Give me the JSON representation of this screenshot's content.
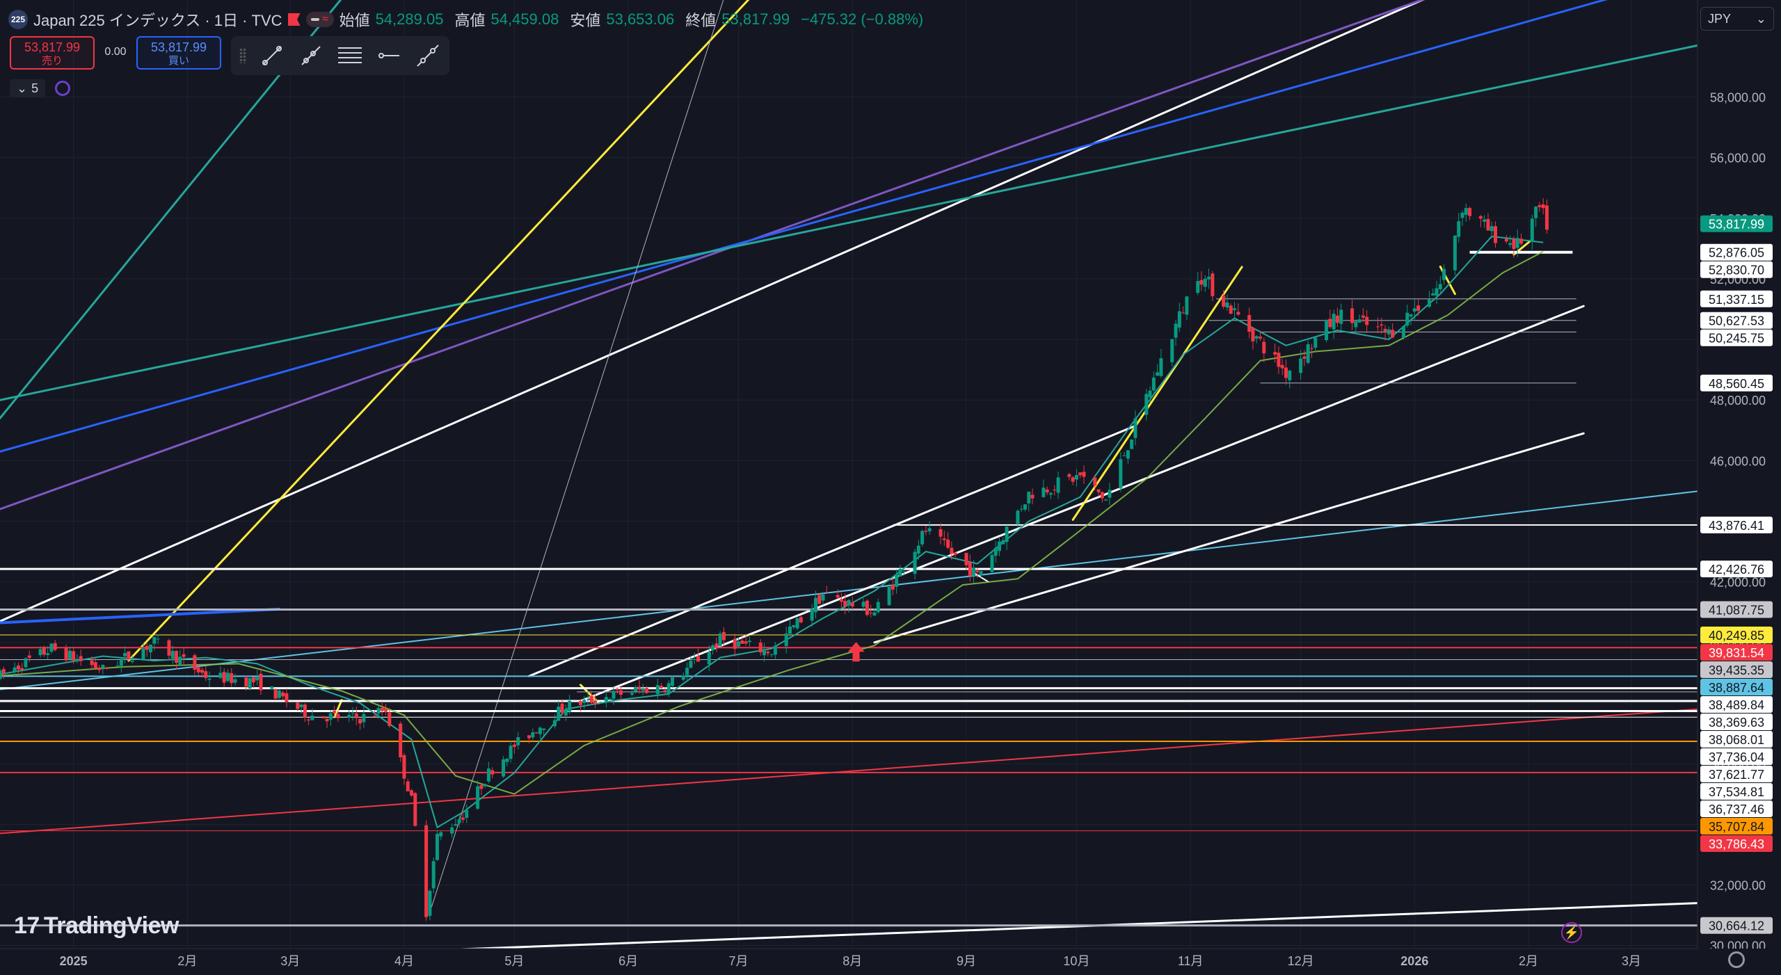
{
  "header": {
    "symbol_badge": "225",
    "title": "Japan 225 インデックス · 1日 · TVC",
    "open_label": "始値",
    "open_value": "54,289.05",
    "high_label": "高値",
    "high_value": "54,459.08",
    "low_label": "安値",
    "low_value": "53,653.06",
    "close_label": "終値",
    "close_value": "53,817.99",
    "change": "−475.32 (−0.88%)"
  },
  "trade": {
    "sell_price": "53,817.99",
    "sell_label": "売り",
    "spread": "0.00",
    "buy_price": "53,817.99",
    "buy_label": "買い"
  },
  "legend": {
    "indicator_count": "5"
  },
  "currency": {
    "value": "JPY"
  },
  "brand": {
    "logo_text": "TradingView"
  },
  "colors": {
    "up": "#089981",
    "down": "#f23645",
    "background": "#141722",
    "text": "#d1d4dc"
  },
  "chart_data": {
    "type": "candlestick",
    "title": "Japan 225 インデックス · 1日 · TVC",
    "x_axis": {
      "ticks": [
        {
          "label": "2025",
          "date": "2025-01-01"
        },
        {
          "label": "2月",
          "date": "2025-02-01"
        },
        {
          "label": "3月",
          "date": "2025-03-01"
        },
        {
          "label": "4月",
          "date": "2025-04-01"
        },
        {
          "label": "5月",
          "date": "2025-05-01"
        },
        {
          "label": "6月",
          "date": "2025-06-01"
        },
        {
          "label": "7月",
          "date": "2025-07-01"
        },
        {
          "label": "8月",
          "date": "2025-08-01"
        },
        {
          "label": "9月",
          "date": "2025-09-01"
        },
        {
          "label": "10月",
          "date": "2025-10-01"
        },
        {
          "label": "11月",
          "date": "2025-11-01"
        },
        {
          "label": "12月",
          "date": "2025-12-01"
        },
        {
          "label": "2026",
          "date": "2026-01-01"
        },
        {
          "label": "2月",
          "date": "2026-02-01"
        },
        {
          "label": "3月",
          "date": "2026-03-01"
        }
      ],
      "range": [
        "2024-12-12",
        "2026-03-19"
      ]
    },
    "y_axis": {
      "ticks": [
        "30,000.00",
        "32,000.00",
        "34,000.00",
        "36,000.00",
        "38,000.00",
        "40,000.00",
        "42,000.00",
        "44,000.00",
        "46,000.00",
        "48,000.00",
        "50,000.00",
        "52,000.00",
        "54,000.00",
        "56,000.00",
        "58,000.00"
      ],
      "tick_values": [
        30000,
        32000,
        34000,
        36000,
        38000,
        40000,
        42000,
        44000,
        46000,
        48000,
        50000,
        52000,
        54000,
        56000,
        58000
      ],
      "range": [
        29900,
        61200
      ]
    },
    "last_price": {
      "label": "53,817.99",
      "value": 53817.99
    },
    "price_labels": [
      {
        "label": "52,876.05",
        "value": 52876.05,
        "bg": "#ffffff",
        "fg": "#131722"
      },
      {
        "label": "52,830.70",
        "value": 52830.7,
        "bg": "#ffffff",
        "fg": "#131722"
      },
      {
        "label": "51,337.15",
        "value": 51337.15,
        "bg": "#ffffff",
        "fg": "#131722"
      },
      {
        "label": "50,627.53",
        "value": 50627.53,
        "bg": "#ffffff",
        "fg": "#131722"
      },
      {
        "label": "50,245.75",
        "value": 50245.75,
        "bg": "#ffffff",
        "fg": "#131722"
      },
      {
        "label": "48,560.45",
        "value": 48560.45,
        "bg": "#ffffff",
        "fg": "#131722"
      },
      {
        "label": "43,876.41",
        "value": 43876.41,
        "bg": "#ffffff",
        "fg": "#131722"
      },
      {
        "label": "42,426.76",
        "value": 42426.76,
        "bg": "#ffffff",
        "fg": "#131722"
      },
      {
        "label": "41,087.75",
        "value": 41087.75,
        "bg": "#c8c8cc",
        "fg": "#131722"
      },
      {
        "label": "40,249.85",
        "value": 40249.85,
        "bg": "#ffeb3b",
        "fg": "#131722"
      },
      {
        "label": "39,831.54",
        "value": 39831.54,
        "bg": "#f23645",
        "fg": "#ffffff"
      },
      {
        "label": "39,435.35",
        "value": 39435.35,
        "bg": "#c8c8cc",
        "fg": "#131722"
      },
      {
        "label": "38,887.64",
        "value": 38887.64,
        "bg": "#5fc3e4",
        "fg": "#131722"
      },
      {
        "label": "38,489.84",
        "value": 38489.84,
        "bg": "#ffffff",
        "fg": "#131722"
      },
      {
        "label": "38,369.63",
        "value": 38369.63,
        "bg": "#ffffff",
        "fg": "#131722"
      },
      {
        "label": "38,068.01",
        "value": 38068.01,
        "bg": "#ffffff",
        "fg": "#131722"
      },
      {
        "label": "37,736.04",
        "value": 37736.04,
        "bg": "#ffffff",
        "fg": "#131722"
      },
      {
        "label": "37,621.77",
        "value": 37621.77,
        "bg": "#ffffff",
        "fg": "#131722"
      },
      {
        "label": "37,534.81",
        "value": 37534.81,
        "bg": "#ffffff",
        "fg": "#131722"
      },
      {
        "label": "36,737.46",
        "value": 36737.46,
        "bg": "#ffffff",
        "fg": "#131722"
      },
      {
        "label": "35,707.84",
        "value": 35707.84,
        "bg": "#ff9800",
        "fg": "#131722"
      },
      {
        "label": "33,786.43",
        "value": 33786.43,
        "bg": "#f23645",
        "fg": "#ffffff"
      },
      {
        "label": "30,664.12",
        "value": 30664.12,
        "bg": "#c8c8cc",
        "fg": "#131722"
      }
    ],
    "horizontal_lines": [
      {
        "value": 52876.05,
        "color": "#ffffff",
        "from": "2026-01-16",
        "to": "2026-02-13",
        "width": 4
      },
      {
        "value": 51337.15,
        "color": "#b2b5be",
        "from": "2025-11-08",
        "to": "2026-02-14",
        "width": 1
      },
      {
        "value": 50627.53,
        "color": "#b2b5be",
        "from": "2025-11-06",
        "to": "2026-02-14",
        "width": 1
      },
      {
        "value": 50245.75,
        "color": "#b2b5be",
        "from": "2025-11-20",
        "to": "2026-02-14",
        "width": 1
      },
      {
        "value": 48560.45,
        "color": "#b2b5be",
        "from": "2025-11-20",
        "to": "2026-02-14",
        "width": 1
      },
      {
        "value": 43876.41,
        "color": "#ffffff",
        "from": "2025-08-12",
        "to": "2026-03-19",
        "width": 2
      },
      {
        "value": 42426.76,
        "color": "#ffffff",
        "from": "2024-12-12",
        "to": "2026-03-19",
        "width": 3
      },
      {
        "value": 41087.75,
        "color": "#b2b5be",
        "from": "2024-12-12",
        "to": "2026-03-19",
        "width": 3
      },
      {
        "value": 40249.85,
        "color": "#ffeb3b",
        "from": "2024-12-12",
        "to": "2026-03-19",
        "width": 1
      },
      {
        "value": 39831.54,
        "color": "#f23645",
        "from": "2024-12-12",
        "to": "2026-03-19",
        "width": 2
      },
      {
        "value": 39435.35,
        "color": "#b2b5be",
        "from": "2024-12-12",
        "to": "2026-03-19",
        "width": 1
      },
      {
        "value": 38887.64,
        "color": "#5fc3e4",
        "from": "2024-12-12",
        "to": "2026-03-19",
        "width": 2
      },
      {
        "value": 38489.84,
        "color": "#ffffff",
        "from": "2024-12-12",
        "to": "2026-03-19",
        "width": 3
      },
      {
        "value": 38369.63,
        "color": "#b2b5be",
        "from": "2025-05-18",
        "to": "2026-03-19",
        "width": 1
      },
      {
        "value": 38068.01,
        "color": "#ffffff",
        "from": "2024-12-12",
        "to": "2026-03-19",
        "width": 3
      },
      {
        "value": 37736.04,
        "color": "#ffffff",
        "from": "2024-12-12",
        "to": "2026-03-19",
        "width": 3
      },
      {
        "value": 37534.81,
        "color": "#ffffff",
        "from": "2024-12-12",
        "to": "2026-03-19",
        "width": 1
      },
      {
        "value": 36737.46,
        "color": "#ff9800",
        "from": "2024-12-12",
        "to": "2026-03-19",
        "width": 2
      },
      {
        "value": 35707.84,
        "color": "#f23645",
        "from": "2024-12-12",
        "to": "2026-03-19",
        "width": 2
      },
      {
        "value": 33786.43,
        "color": "#f23645",
        "from": "2024-12-12",
        "to": "2026-03-19",
        "width": 1
      },
      {
        "value": 30664.12,
        "color": "#b2b5be",
        "from": "2024-12-12",
        "to": "2026-03-19",
        "width": 3
      }
    ],
    "trend_lines": [
      {
        "color": "#ffffff",
        "p1": {
          "date": "2024-12-12",
          "value": 40700
        },
        "p2": {
          "date": "2026-01-04",
          "value": 61250
        },
        "width": 3
      },
      {
        "color": "#7e57c2",
        "p1": {
          "date": "2024-12-12",
          "value": 44400
        },
        "p2": {
          "date": "2026-01-04",
          "value": 61250
        },
        "width": 3
      },
      {
        "color": "#2962ff",
        "p1": {
          "date": "2024-12-12",
          "value": 46300
        },
        "p2": {
          "date": "2026-02-23",
          "value": 61250
        },
        "width": 3
      },
      {
        "color": "#26a69a",
        "p1": {
          "date": "2024-12-12",
          "value": 48000
        },
        "p2": {
          "date": "2026-03-19",
          "value": 59700
        },
        "width": 3
      },
      {
        "color": "#26a69a",
        "p1": {
          "date": "2024-12-12",
          "value": 47400
        },
        "p2": {
          "date": "2025-03-15",
          "value": 61250
        },
        "width": 3
      },
      {
        "color": "#ffeb3b",
        "p1": {
          "date": "2025-01-16",
          "value": 39400
        },
        "p2": {
          "date": "2025-07-04",
          "value": 61250
        },
        "width": 3
      },
      {
        "color": "#b2b5be",
        "p1": {
          "date": "2025-04-08",
          "value": 31100
        },
        "p2": {
          "date": "2025-06-27",
          "value": 61250
        },
        "width": 1
      },
      {
        "color": "#2962ff",
        "p1": {
          "date": "2024-12-12",
          "value": 40650
        },
        "p2": {
          "date": "2025-02-26",
          "value": 41100
        },
        "width": 4
      },
      {
        "color": "#5fc3e4",
        "p1": {
          "date": "2024-12-12",
          "value": 38450
        },
        "p2": {
          "date": "2026-03-19",
          "value": 44990
        },
        "width": 2
      },
      {
        "color": "#f23645",
        "p1": {
          "date": "2024-12-12",
          "value": 33700
        },
        "p2": {
          "date": "2026-03-19",
          "value": 37800
        },
        "width": 2
      },
      {
        "color": "#ffffff",
        "p1": {
          "date": "2024-12-12",
          "value": 29310
        },
        "p2": {
          "date": "2026-03-19",
          "value": 31400
        },
        "width": 3
      },
      {
        "color": "#ffffff",
        "p1": {
          "date": "2025-05-05",
          "value": 38890
        },
        "p2": {
          "date": "2025-10-17",
          "value": 47150
        },
        "width": 3
      },
      {
        "color": "#ffffff",
        "p1": {
          "date": "2025-05-19",
          "value": 38070
        },
        "p2": {
          "date": "2026-02-16",
          "value": 51100
        },
        "width": 3
      },
      {
        "color": "#ffffff",
        "p1": {
          "date": "2025-08-07",
          "value": 40000
        },
        "p2": {
          "date": "2026-02-16",
          "value": 46900
        },
        "width": 3
      },
      {
        "color": "#ffeb3b",
        "p1": {
          "date": "2025-09-30",
          "value": 44050
        },
        "p2": {
          "date": "2025-11-15",
          "value": 52390
        },
        "width": 3
      },
      {
        "color": "#ffeb3b",
        "p1": {
          "date": "2025-03-13",
          "value": 37540
        },
        "p2": {
          "date": "2025-03-15",
          "value": 38100
        },
        "width": 3
      },
      {
        "color": "#ffeb3b",
        "p1": {
          "date": "2025-05-19",
          "value": 38600
        },
        "p2": {
          "date": "2025-05-24",
          "value": 38000
        },
        "width": 3
      },
      {
        "color": "#ffeb3b",
        "p1": {
          "date": "2026-01-08",
          "value": 52400
        },
        "p2": {
          "date": "2026-01-12",
          "value": 51500
        },
        "width": 3
      },
      {
        "color": "#ffeb3b",
        "p1": {
          "date": "2026-01-28",
          "value": 52800
        },
        "p2": {
          "date": "2026-02-02",
          "value": 53300
        },
        "width": 3
      },
      {
        "color": "#ffffff",
        "p1": {
          "date": "2025-09-03",
          "value": 42300
        },
        "p2": {
          "date": "2025-09-07",
          "value": 42000
        },
        "width": 2
      }
    ],
    "markers": [
      {
        "type": "arrow-up",
        "date": "2025-08-02",
        "value": 39600,
        "color": "#f23645"
      }
    ],
    "ma_fast": [
      [
        "2024-12-12",
        38950
      ],
      [
        "2024-12-26",
        39250
      ],
      [
        "2025-01-09",
        39550
      ],
      [
        "2025-01-23",
        39400
      ],
      [
        "2025-02-06",
        39500
      ],
      [
        "2025-02-20",
        39300
      ],
      [
        "2025-03-06",
        38600
      ],
      [
        "2025-03-20",
        38000
      ],
      [
        "2025-04-03",
        36800
      ],
      [
        "2025-04-10",
        33900
      ],
      [
        "2025-04-17",
        34400
      ],
      [
        "2025-05-01",
        35700
      ],
      [
        "2025-05-15",
        37800
      ],
      [
        "2025-05-29",
        38100
      ],
      [
        "2025-06-12",
        38300
      ],
      [
        "2025-06-26",
        39500
      ],
      [
        "2025-07-10",
        39800
      ],
      [
        "2025-07-24",
        40800
      ],
      [
        "2025-08-07",
        41700
      ],
      [
        "2025-08-21",
        43000
      ],
      [
        "2025-09-04",
        42600
      ],
      [
        "2025-09-18",
        44000
      ],
      [
        "2025-10-02",
        44800
      ],
      [
        "2025-10-16",
        47200
      ],
      [
        "2025-10-30",
        49500
      ],
      [
        "2025-11-13",
        50700
      ],
      [
        "2025-11-27",
        49800
      ],
      [
        "2025-12-11",
        50300
      ],
      [
        "2025-12-25",
        50000
      ],
      [
        "2026-01-08",
        51500
      ],
      [
        "2026-01-22",
        53400
      ],
      [
        "2026-02-05",
        53200
      ]
    ],
    "ma_slow": [
      [
        "2024-12-12",
        38900
      ],
      [
        "2025-01-15",
        39200
      ],
      [
        "2025-02-15",
        39300
      ],
      [
        "2025-03-15",
        38400
      ],
      [
        "2025-04-01",
        37600
      ],
      [
        "2025-04-15",
        35600
      ],
      [
        "2025-05-01",
        35000
      ],
      [
        "2025-05-20",
        36600
      ],
      [
        "2025-06-15",
        37900
      ],
      [
        "2025-07-15",
        39100
      ],
      [
        "2025-08-07",
        39900
      ],
      [
        "2025-08-31",
        41900
      ],
      [
        "2025-09-15",
        42100
      ],
      [
        "2025-10-01",
        43600
      ],
      [
        "2025-10-20",
        45400
      ],
      [
        "2025-11-05",
        47400
      ],
      [
        "2025-11-20",
        49300
      ],
      [
        "2025-12-05",
        49600
      ],
      [
        "2025-12-25",
        49800
      ],
      [
        "2026-01-10",
        50800
      ],
      [
        "2026-01-25",
        52200
      ],
      [
        "2026-02-05",
        52900
      ]
    ],
    "ohlc_anchors": [
      [
        "2024-12-12",
        38900
      ],
      [
        "2024-12-26",
        39800
      ],
      [
        "2025-01-09",
        39100
      ],
      [
        "2025-01-23",
        40000
      ],
      [
        "2025-02-06",
        38900
      ],
      [
        "2025-02-20",
        38700
      ],
      [
        "2025-03-06",
        37600
      ],
      [
        "2025-03-20",
        37500
      ],
      [
        "2025-03-27",
        37800
      ],
      [
        "2025-04-03",
        34800
      ],
      [
        "2025-04-07",
        31100
      ],
      [
        "2025-04-10",
        33600
      ],
      [
        "2025-04-17",
        34300
      ],
      [
        "2025-04-24",
        35700
      ],
      [
        "2025-05-01",
        36600
      ],
      [
        "2025-05-15",
        37900
      ],
      [
        "2025-05-29",
        38300
      ],
      [
        "2025-06-12",
        38600
      ],
      [
        "2025-06-26",
        40100
      ],
      [
        "2025-07-10",
        39700
      ],
      [
        "2025-07-24",
        41600
      ],
      [
        "2025-08-07",
        41000
      ],
      [
        "2025-08-21",
        43700
      ],
      [
        "2025-09-04",
        42200
      ],
      [
        "2025-09-18",
        44900
      ],
      [
        "2025-10-02",
        45500
      ],
      [
        "2025-10-09",
        44700
      ],
      [
        "2025-10-23",
        49000
      ],
      [
        "2025-11-03",
        52200
      ],
      [
        "2025-11-13",
        50900
      ],
      [
        "2025-11-27",
        48900
      ],
      [
        "2025-12-11",
        50800
      ],
      [
        "2025-12-25",
        50200
      ],
      [
        "2026-01-08",
        51800
      ],
      [
        "2026-01-14",
        54400
      ],
      [
        "2026-01-22",
        53500
      ],
      [
        "2026-01-29",
        53100
      ],
      [
        "2026-02-04",
        54300
      ],
      [
        "2026-02-06",
        53800
      ]
    ]
  }
}
